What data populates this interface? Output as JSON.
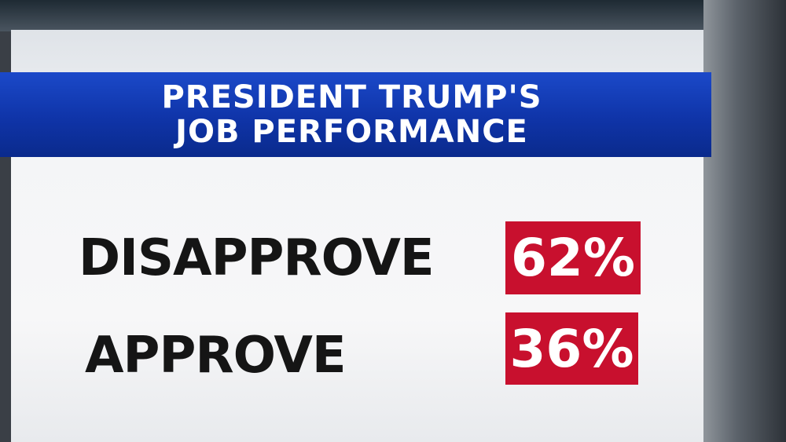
{
  "title": [
    "PRESIDENT TRUMP'S",
    "JOB PERFORMANCE"
  ],
  "rows": [
    {
      "label": "DISAPPROVE",
      "value": "62%"
    },
    {
      "label": "APPROVE",
      "value": "36%"
    }
  ]
}
